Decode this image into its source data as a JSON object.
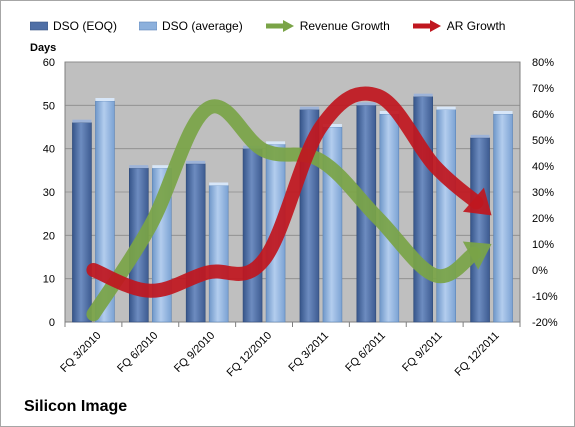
{
  "chart_data": {
    "type": "bar",
    "title": "",
    "caption": "Silicon Image",
    "categories": [
      "FQ 3/2010",
      "FQ 6/2010",
      "FQ 9/2010",
      "FQ 12/2010",
      "FQ 3/2011",
      "FQ 6/2011",
      "FQ 9/2011",
      "FQ 12/2011"
    ],
    "bar_series": [
      {
        "name": "DSO (EOQ)",
        "values": [
          46,
          35.5,
          36.5,
          40,
          49,
          50,
          52,
          42.5
        ],
        "color": "#4f6fa6"
      },
      {
        "name": "DSO (average)",
        "values": [
          51,
          35.5,
          31.5,
          41,
          45,
          48,
          49,
          48
        ],
        "color": "#8cb0dc"
      }
    ],
    "line_series": [
      {
        "name": "Revenue Growth",
        "axis": "right",
        "values": [
          -17,
          17,
          62,
          46,
          42,
          20,
          -2,
          10
        ],
        "color": "#7aa447"
      },
      {
        "name": "AR Growth",
        "axis": "right",
        "values": [
          0,
          -8,
          -1,
          4,
          55,
          67,
          40,
          21
        ],
        "color": "#c0171f"
      }
    ],
    "y_left": {
      "label": "Days",
      "min": 0,
      "max": 60,
      "step": 10,
      "ticks": [
        "0",
        "10",
        "20",
        "30",
        "40",
        "50",
        "60"
      ]
    },
    "y_right": {
      "label": "",
      "min": -20,
      "max": 80,
      "step": 10,
      "ticks": [
        "-20%",
        "-10%",
        "0%",
        "10%",
        "20%",
        "30%",
        "40%",
        "50%",
        "60%",
        "70%",
        "80%"
      ]
    },
    "grid": true,
    "legend_position": "top",
    "plot_background": "#bfbfbf"
  }
}
